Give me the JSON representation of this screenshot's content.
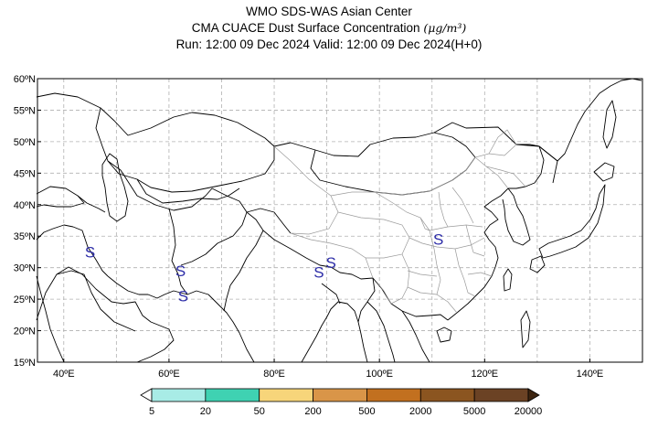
{
  "title": {
    "line1": "WMO SDS-WAS Asian Center",
    "line2_text": "CMA CUACE Dust Surface Concentration ",
    "line2_unit": "(μg/m³)",
    "line3": "Run: 12:00 09 Dec 2024    Valid: 12:00 09 Dec 2024(H+0)"
  },
  "map": {
    "lon_range": [
      35,
      150
    ],
    "lat_range": [
      15,
      60
    ],
    "lat_ticks": [
      {
        "value": 15,
        "label": "15ºN"
      },
      {
        "value": 20,
        "label": "20ºN"
      },
      {
        "value": 25,
        "label": "25ºN"
      },
      {
        "value": 30,
        "label": "30ºN"
      },
      {
        "value": 35,
        "label": "35ºN"
      },
      {
        "value": 40,
        "label": "40ºN"
      },
      {
        "value": 45,
        "label": "45ºN"
      },
      {
        "value": 50,
        "label": "50ºN"
      },
      {
        "value": 55,
        "label": "55ºN"
      },
      {
        "value": 60,
        "label": "60ºN"
      }
    ],
    "lon_ticks": [
      {
        "value": 40,
        "label": "40ºE"
      },
      {
        "value": 60,
        "label": "60ºE"
      },
      {
        "value": 80,
        "label": "80ºE"
      },
      {
        "value": 100,
        "label": "100ºE"
      },
      {
        "value": 120,
        "label": "120ºE"
      },
      {
        "value": 140,
        "label": "140ºE"
      }
    ],
    "grid_lon": [
      40,
      50,
      60,
      70,
      80,
      90,
      100,
      110,
      120,
      130,
      140
    ],
    "grid_lat": [
      20,
      25,
      30,
      35,
      40,
      45,
      50,
      55
    ],
    "grid_color": "#b0b0b0",
    "coast_color": "#000000",
    "china_province_color": "#9a9a9a",
    "markers": [
      {
        "symbol": "S",
        "lon": 45.0,
        "lat": 32.5
      },
      {
        "symbol": "S",
        "lon": 62.2,
        "lat": 29.5
      },
      {
        "symbol": "S",
        "lon": 62.7,
        "lat": 25.5
      },
      {
        "symbol": "S",
        "lon": 88.5,
        "lat": 29.3
      },
      {
        "symbol": "S",
        "lon": 90.8,
        "lat": 30.8
      },
      {
        "symbol": "S",
        "lon": 111.2,
        "lat": 34.5
      }
    ],
    "marker_color": "#2d2da8"
  },
  "colorbar": {
    "colors": [
      "#ffffff",
      "#a8ece6",
      "#3fd2b2",
      "#f7d57a",
      "#d99548",
      "#c2701f",
      "#8b5520",
      "#6b4224",
      "#3d2510"
    ],
    "labels": [
      "5",
      "20",
      "50",
      "200",
      "500",
      "2000",
      "5000",
      "20000"
    ]
  }
}
